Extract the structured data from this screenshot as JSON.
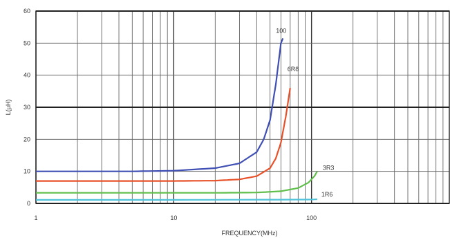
{
  "chart_data": {
    "type": "line",
    "xscale": "log",
    "xlim": [
      1,
      1000
    ],
    "ylim": [
      0,
      60
    ],
    "grid": true,
    "xlabel": "FREQUENCY(MHz)",
    "ylabel": "L(μH)",
    "x_ticks": [
      "1",
      "10",
      "100"
    ],
    "y_ticks": [
      "0",
      "10",
      "20",
      "30",
      "40",
      "50",
      "60"
    ],
    "series": [
      {
        "name": "100",
        "color": "#3f4fb3",
        "x": [
          1,
          2,
          5,
          10,
          20,
          30,
          40,
          45,
          50,
          55,
          60,
          62
        ],
        "y": [
          10,
          10,
          10,
          10.2,
          11,
          12.5,
          16,
          20,
          26,
          37,
          50,
          51.5
        ]
      },
      {
        "name": "6R8",
        "color": "#e8522a",
        "x": [
          1,
          2,
          5,
          10,
          20,
          30,
          40,
          50,
          55,
          60,
          65,
          70
        ],
        "y": [
          7,
          7,
          7,
          7,
          7.1,
          7.5,
          8.5,
          11,
          14,
          19,
          27,
          36
        ]
      },
      {
        "name": "3R3",
        "color": "#5fbf4a",
        "x": [
          1,
          2,
          5,
          10,
          20,
          40,
          60,
          80,
          95,
          105,
          110
        ],
        "y": [
          3.3,
          3.3,
          3.3,
          3.3,
          3.3,
          3.4,
          3.8,
          4.8,
          6.5,
          8.5,
          10
        ]
      },
      {
        "name": "1R6",
        "color": "#4fc1d9",
        "x": [
          1,
          10,
          100,
          110
        ],
        "y": [
          1.1,
          1.1,
          1.2,
          1.3
        ]
      }
    ]
  }
}
